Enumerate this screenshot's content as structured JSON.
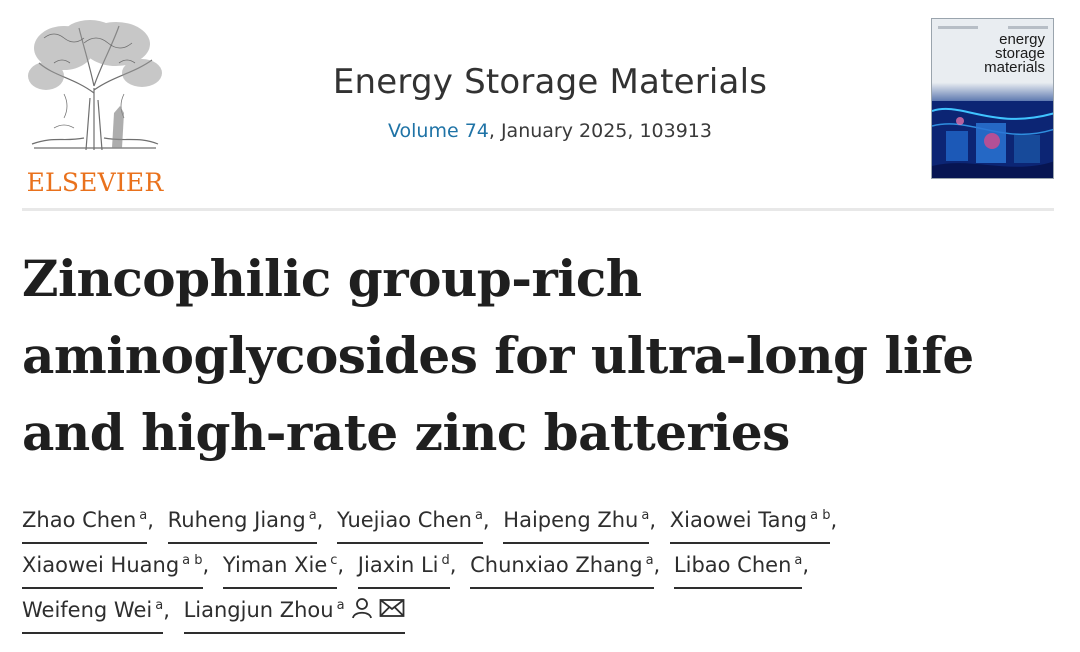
{
  "publisher": {
    "name": "ELSEVIER",
    "logo_icon": "elsevier-tree-icon"
  },
  "journal": {
    "title": "Energy Storage Materials",
    "volume_link": "Volume 74",
    "issue_rest": ", January 2025, 103913",
    "cover_title_lines": [
      "energy",
      "storage",
      "materials"
    ]
  },
  "article": {
    "title_lines": [
      "Zincophilic group-rich",
      "aminoglycosides for ultra-long life",
      "and high-rate zinc batteries"
    ]
  },
  "authors": [
    {
      "name": "Zhao Chen",
      "aff": "a"
    },
    {
      "name": "Ruheng Jiang",
      "aff": "a"
    },
    {
      "name": "Yuejiao Chen",
      "aff": "a"
    },
    {
      "name": "Haipeng Zhu",
      "aff": "a"
    },
    {
      "name": "Xiaowei Tang",
      "aff": "a b"
    },
    {
      "name": "Xiaowei Huang",
      "aff": "a b"
    },
    {
      "name": "Yiman Xie",
      "aff": "c"
    },
    {
      "name": "Jiaxin Li",
      "aff": "d"
    },
    {
      "name": "Chunxiao Zhang",
      "aff": "a"
    },
    {
      "name": "Libao Chen",
      "aff": "a"
    },
    {
      "name": "Weifeng Wei",
      "aff": "a"
    },
    {
      "name": "Liangjun Zhou",
      "aff": "a"
    }
  ],
  "icons": {
    "corresponding": "person-icon",
    "email": "envelope-icon"
  },
  "colors": {
    "brand_orange": "#e9711c",
    "link_blue": "#1f73a6"
  }
}
